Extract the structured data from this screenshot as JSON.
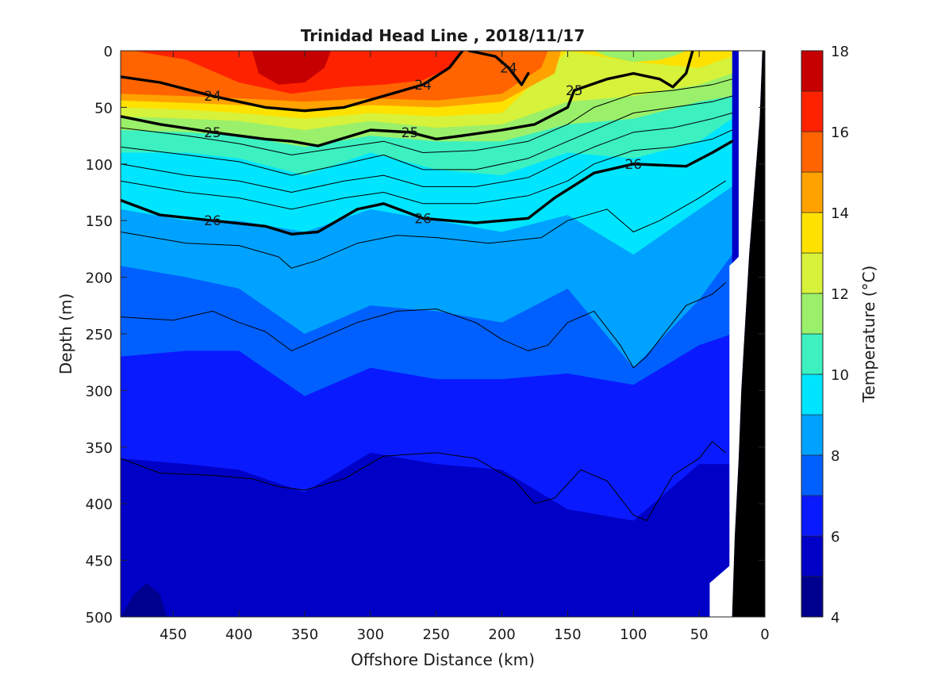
{
  "chart_data": {
    "type": "contour",
    "title": "Trinidad Head Line , 2018/11/17",
    "xlabel": "Offshore Distance (km)",
    "ylabel": "Depth (m)",
    "xlim": [
      490,
      0
    ],
    "ylim": [
      0,
      500
    ],
    "x_reversed": true,
    "y_reversed": true,
    "x_ticks": [
      450,
      400,
      350,
      300,
      250,
      200,
      150,
      100,
      50,
      0
    ],
    "y_ticks": [
      0,
      50,
      100,
      150,
      200,
      250,
      300,
      350,
      400,
      450,
      500
    ],
    "colorbar": {
      "label": "Temperature (°C)",
      "range": [
        4,
        18
      ],
      "ticks": [
        4,
        6,
        8,
        10,
        12,
        14,
        16,
        18
      ],
      "levels": [
        4,
        5,
        6,
        7,
        8,
        9,
        10,
        11,
        12,
        13,
        14,
        15,
        16,
        17,
        18
      ],
      "colors": [
        "#00008f",
        "#0000c7",
        "#0a1aff",
        "#0060ff",
        "#00a2ff",
        "#00e5ff",
        "#3cf0c0",
        "#9af06a",
        "#d7f23a",
        "#ffe100",
        "#ffa200",
        "#ff6400",
        "#ff2200",
        "#c60000"
      ]
    },
    "temperature_isotherms_m": [
      {
        "temp": 6,
        "x": [
          490,
          440,
          400,
          350,
          300,
          250,
          200,
          150,
          100,
          50,
          25
        ],
        "depth": [
          360,
          365,
          370,
          390,
          355,
          365,
          370,
          405,
          415,
          365,
          365
        ]
      },
      {
        "temp": 7,
        "x": [
          490,
          440,
          400,
          350,
          300,
          250,
          200,
          150,
          100,
          50,
          25
        ],
        "depth": [
          270,
          265,
          265,
          305,
          280,
          290,
          290,
          285,
          295,
          260,
          250
        ]
      },
      {
        "temp": 8,
        "x": [
          490,
          440,
          400,
          350,
          300,
          250,
          200,
          150,
          100,
          50,
          25
        ],
        "depth": [
          190,
          200,
          210,
          250,
          225,
          230,
          240,
          210,
          280,
          220,
          180
        ]
      },
      {
        "temp": 9,
        "x": [
          490,
          440,
          400,
          350,
          300,
          250,
          200,
          150,
          100,
          50,
          25
        ],
        "depth": [
          140,
          150,
          150,
          160,
          140,
          150,
          160,
          145,
          180,
          140,
          120
        ]
      },
      {
        "temp": 10,
        "x": [
          490,
          440,
          400,
          350,
          300,
          250,
          200,
          150,
          100,
          50,
          25
        ],
        "depth": [
          90,
          90,
          95,
          110,
          90,
          105,
          110,
          90,
          95,
          80,
          60
        ]
      },
      {
        "temp": 11,
        "x": [
          490,
          440,
          400,
          350,
          300,
          250,
          200,
          150,
          100,
          50,
          25
        ],
        "depth": [
          70,
          72,
          75,
          85,
          75,
          80,
          80,
          65,
          60,
          45,
          40
        ]
      },
      {
        "temp": 12,
        "x": [
          490,
          440,
          400,
          350,
          300,
          250,
          200,
          150,
          100,
          50,
          25
        ],
        "depth": [
          58,
          60,
          62,
          70,
          62,
          68,
          65,
          45,
          40,
          30,
          20
        ]
      },
      {
        "temp": 13,
        "x": [
          490,
          440,
          400,
          350,
          300,
          250,
          200,
          150,
          100,
          50,
          25
        ],
        "depth": [
          50,
          52,
          55,
          60,
          55,
          58,
          55,
          0,
          10,
          15,
          5
        ]
      },
      {
        "temp": 14,
        "x": [
          490,
          440,
          400,
          350,
          300,
          250,
          200,
          160,
          155
        ],
        "depth": [
          44,
          46,
          48,
          52,
          48,
          50,
          45,
          20,
          0
        ]
      },
      {
        "temp": 15,
        "x": [
          490,
          440,
          400,
          350,
          300,
          250,
          200,
          170,
          165
        ],
        "depth": [
          38,
          40,
          42,
          45,
          42,
          44,
          38,
          15,
          0
        ]
      }
    ],
    "warm_patches": [
      {
        "temp": 16,
        "x": [
          480,
          440,
          400,
          360,
          320,
          290,
          260,
          240,
          230,
          215,
          220,
          260,
          290,
          320,
          360,
          400,
          440
        ],
        "depth": [
          0,
          8,
          28,
          38,
          32,
          30,
          26,
          15,
          0,
          0,
          0,
          0,
          0,
          0,
          0,
          0,
          0
        ]
      },
      {
        "temp": 17,
        "x": [
          390,
          385,
          370,
          350,
          335,
          330
        ],
        "depth": [
          0,
          20,
          30,
          28,
          15,
          0
        ]
      },
      {
        "temp": 11,
        "x": [
          130,
          120,
          100,
          80,
          70,
          60
        ],
        "depth": [
          0,
          5,
          10,
          8,
          5,
          0
        ]
      },
      {
        "temp": 3.9,
        "x": [
          490,
          480,
          470,
          460,
          455
        ],
        "depth": [
          500,
          480,
          470,
          480,
          500
        ]
      }
    ],
    "density_contours": {
      "bold_levels": [
        24,
        25,
        26
      ],
      "labels_on_chart": [
        "24",
        "24",
        "24",
        "25",
        "25",
        "25",
        "26",
        "26",
        "26"
      ],
      "lines": [
        {
          "level": 24,
          "bold": true,
          "x": [
            490,
            460,
            420,
            380,
            350,
            320,
            290,
            260,
            240,
            230
          ],
          "depth": [
            23,
            28,
            40,
            50,
            53,
            50,
            40,
            30,
            15,
            0
          ]
        },
        {
          "level": 24,
          "bold": true,
          "x": [
            225,
            205,
            195,
            185,
            180
          ],
          "depth": [
            0,
            5,
            15,
            30,
            20
          ]
        },
        {
          "level": 25,
          "bold": true,
          "x": [
            490,
            460,
            420,
            380,
            360,
            340,
            300,
            270,
            250,
            230,
            200,
            175,
            150,
            145,
            120,
            100,
            80,
            70,
            60,
            55
          ],
          "depth": [
            58,
            65,
            72,
            78,
            80,
            84,
            70,
            72,
            78,
            75,
            70,
            65,
            50,
            35,
            25,
            20,
            25,
            32,
            20,
            0
          ]
        },
        {
          "level": 26,
          "bold": true,
          "x": [
            490,
            460,
            420,
            380,
            360,
            340,
            310,
            290,
            260,
            220,
            180,
            160,
            130,
            100,
            60,
            40,
            25
          ],
          "depth": [
            132,
            145,
            150,
            155,
            162,
            160,
            140,
            135,
            148,
            152,
            148,
            130,
            108,
            100,
            102,
            90,
            80
          ]
        },
        {
          "level": 25.2,
          "bold": false,
          "x": [
            490,
            440,
            400,
            360,
            320,
            290,
            260,
            220,
            180,
            150,
            130,
            100,
            70,
            40,
            25
          ],
          "depth": [
            68,
            75,
            82,
            92,
            85,
            80,
            90,
            88,
            80,
            65,
            50,
            38,
            35,
            30,
            25
          ]
        },
        {
          "level": 25.4,
          "bold": false,
          "x": [
            490,
            440,
            400,
            360,
            320,
            290,
            260,
            220,
            180,
            150,
            130,
            100,
            70,
            40,
            25
          ],
          "depth": [
            85,
            92,
            98,
            110,
            100,
            92,
            105,
            105,
            95,
            80,
            70,
            55,
            50,
            45,
            40
          ]
        },
        {
          "level": 25.6,
          "bold": false,
          "x": [
            490,
            440,
            400,
            360,
            320,
            290,
            260,
            220,
            180,
            150,
            130,
            100,
            70,
            40,
            25
          ],
          "depth": [
            100,
            110,
            115,
            125,
            115,
            110,
            120,
            120,
            112,
            95,
            85,
            72,
            68,
            60,
            55
          ]
        },
        {
          "level": 25.8,
          "bold": false,
          "x": [
            490,
            440,
            400,
            360,
            320,
            290,
            260,
            220,
            180,
            150,
            130,
            100,
            70,
            40,
            25
          ],
          "depth": [
            115,
            125,
            130,
            140,
            130,
            125,
            135,
            135,
            128,
            115,
            100,
            88,
            85,
            78,
            70
          ]
        },
        {
          "level": 26.2,
          "bold": false,
          "x": [
            490,
            440,
            400,
            370,
            360,
            340,
            310,
            280,
            250,
            210,
            170,
            150,
            120,
            100,
            80,
            50,
            30
          ],
          "depth": [
            160,
            170,
            172,
            182,
            192,
            185,
            170,
            163,
            165,
            170,
            165,
            150,
            140,
            160,
            150,
            130,
            115
          ]
        },
        {
          "level": 26.4,
          "bold": false,
          "x": [
            490,
            450,
            420,
            400,
            380,
            360,
            340,
            310,
            280,
            250,
            220,
            200,
            180,
            165,
            150,
            130,
            110,
            100,
            90,
            80,
            60,
            40,
            30
          ],
          "depth": [
            235,
            238,
            230,
            240,
            248,
            265,
            255,
            240,
            230,
            228,
            240,
            255,
            265,
            260,
            240,
            230,
            260,
            280,
            270,
            255,
            225,
            215,
            205
          ]
        },
        {
          "level": 26.6,
          "bold": false,
          "x": [
            490,
            460,
            420,
            390,
            370,
            350,
            320,
            290,
            250,
            220,
            190,
            175,
            160,
            140,
            120,
            100,
            90,
            70,
            50,
            40,
            30
          ],
          "depth": [
            360,
            373,
            375,
            378,
            385,
            388,
            378,
            358,
            355,
            360,
            380,
            400,
            395,
            370,
            380,
            410,
            415,
            375,
            360,
            345,
            355
          ]
        }
      ]
    },
    "bathymetry_depth_m": {
      "x": [
        2,
        4,
        8,
        12,
        15,
        18,
        20,
        23,
        25
      ],
      "depth": [
        0,
        60,
        120,
        180,
        240,
        300,
        360,
        430,
        500
      ]
    },
    "no_data_edge": {
      "x": [
        20,
        20,
        27,
        27,
        42,
        42
      ],
      "depth": [
        0,
        182,
        190,
        455,
        470,
        500
      ]
    }
  }
}
